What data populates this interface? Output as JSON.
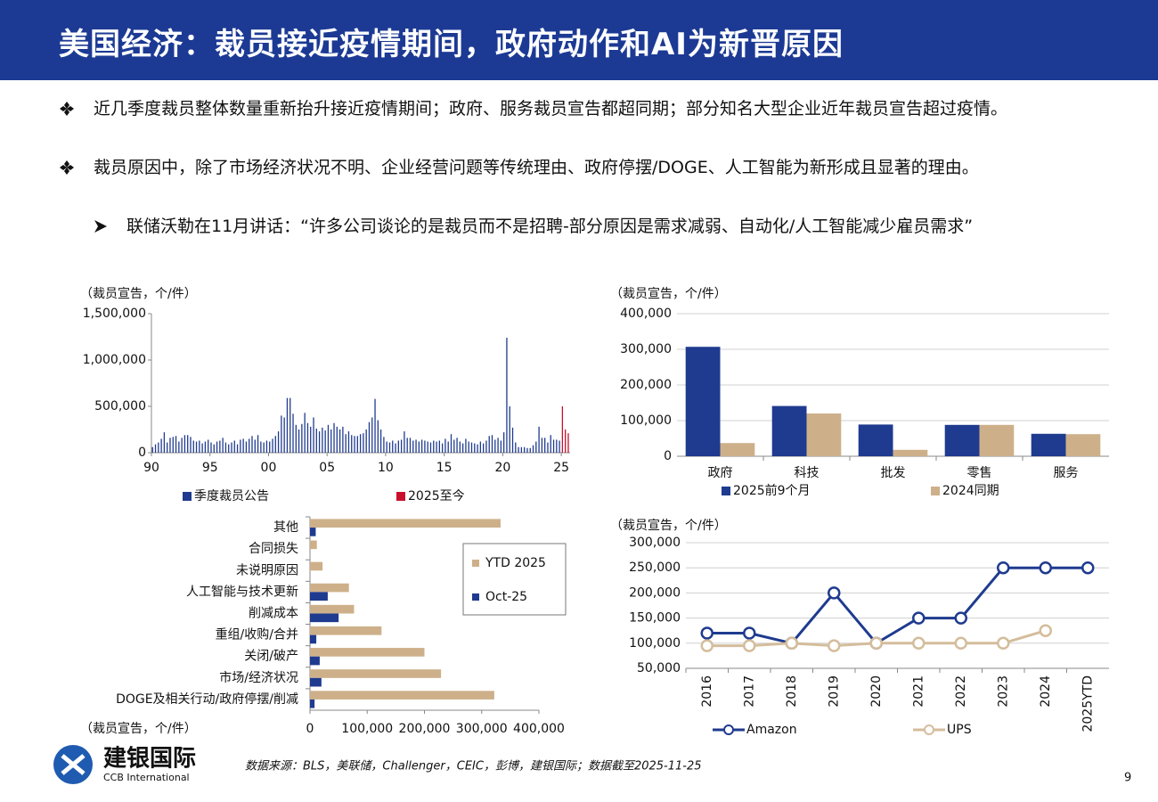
{
  "header": {
    "title": "美国经济：裁员接近疫情期间，政府动作和AI为新晋原因"
  },
  "bullets": [
    "近几季度裁员整体数量重新抬升接近疫情期间；政府、服务裁员宣告都超同期；部分知名大型企业近年裁员宣告超过疫情。",
    "裁员原因中，除了市场经济状况不明、企业经营问题等传统理由、政府停摆/DOGE、人工智能为新形成且显著的理由。"
  ],
  "sub_bullet": "联储沃勒在11月讲话：“许多公司谈论的是裁员而不是招聘-部分原因是需求减弱、自动化/人工智能减少雇员需求”",
  "chart_data": [
    {
      "type": "bar",
      "y_label": "（裁员宣告，个/件）",
      "xlim": [
        1990,
        2025.75
      ],
      "xticks": [
        {
          "value": 1990,
          "label": "90"
        },
        {
          "value": 1995,
          "label": "95"
        },
        {
          "value": 2000,
          "label": "00"
        },
        {
          "value": 2005,
          "label": "05"
        },
        {
          "value": 2010,
          "label": "10"
        },
        {
          "value": 2015,
          "label": "15"
        },
        {
          "value": 2020,
          "label": "20"
        },
        {
          "value": 2025,
          "label": "25"
        }
      ],
      "ylim": [
        0,
        1500000
      ],
      "yticks": [
        0,
        {
          "value": 500000,
          "label": "500,000"
        },
        {
          "value": 1000000,
          "label": "1,000,000"
        },
        {
          "value": 1500000,
          "label": "1,500,000"
        }
      ],
      "grid": false,
      "series": [
        {
          "name": "季度裁员公告",
          "color": "#1f3b8f",
          "x": [
            1990,
            1990.25,
            1990.5,
            1990.75,
            1991,
            1991.25,
            1991.5,
            1991.75,
            1992,
            1992.25,
            1992.5,
            1992.75,
            1993,
            1993.25,
            1993.5,
            1993.75,
            1994,
            1994.25,
            1994.5,
            1994.75,
            1995,
            1995.25,
            1995.5,
            1995.75,
            1996,
            1996.25,
            1996.5,
            1996.75,
            1997,
            1997.25,
            1997.5,
            1997.75,
            1998,
            1998.25,
            1998.5,
            1998.75,
            1999,
            1999.25,
            1999.5,
            1999.75,
            2000,
            2000.25,
            2000.5,
            2000.75,
            2001,
            2001.25,
            2001.5,
            2001.75,
            2002,
            2002.25,
            2002.5,
            2002.75,
            2003,
            2003.25,
            2003.5,
            2003.75,
            2004,
            2004.25,
            2004.5,
            2004.75,
            2005,
            2005.25,
            2005.5,
            2005.75,
            2006,
            2006.25,
            2006.5,
            2006.75,
            2007,
            2007.25,
            2007.5,
            2007.75,
            2008,
            2008.25,
            2008.5,
            2008.75,
            2009,
            2009.25,
            2009.5,
            2009.75,
            2010,
            2010.25,
            2010.5,
            2010.75,
            2011,
            2011.25,
            2011.5,
            2011.75,
            2012,
            2012.25,
            2012.5,
            2012.75,
            2013,
            2013.25,
            2013.5,
            2013.75,
            2014,
            2014.25,
            2014.5,
            2014.75,
            2015,
            2015.25,
            2015.5,
            2015.75,
            2016,
            2016.25,
            2016.5,
            2016.75,
            2017,
            2017.25,
            2017.5,
            2017.75,
            2018,
            2018.25,
            2018.5,
            2018.75,
            2019,
            2019.25,
            2019.5,
            2019.75,
            2020,
            2020.25,
            2020.5,
            2020.75,
            2021,
            2021.25,
            2021.5,
            2021.75,
            2022,
            2022.25,
            2022.5,
            2022.75,
            2023,
            2023.25,
            2023.5,
            2023.75,
            2024,
            2024.25,
            2024.5,
            2024.75
          ],
          "values": [
            60000,
            90000,
            110000,
            150000,
            220000,
            110000,
            160000,
            170000,
            180000,
            120000,
            160000,
            190000,
            190000,
            170000,
            130000,
            120000,
            130000,
            100000,
            120000,
            140000,
            110000,
            90000,
            120000,
            130000,
            160000,
            110000,
            90000,
            110000,
            130000,
            90000,
            140000,
            150000,
            120000,
            150000,
            180000,
            140000,
            190000,
            120000,
            110000,
            130000,
            120000,
            150000,
            180000,
            230000,
            400000,
            380000,
            590000,
            590000,
            420000,
            300000,
            250000,
            310000,
            430000,
            320000,
            280000,
            380000,
            260000,
            230000,
            270000,
            240000,
            300000,
            250000,
            320000,
            280000,
            250000,
            280000,
            200000,
            230000,
            190000,
            180000,
            180000,
            200000,
            210000,
            250000,
            330000,
            380000,
            580000,
            350000,
            250000,
            170000,
            120000,
            110000,
            130000,
            100000,
            130000,
            140000,
            230000,
            160000,
            160000,
            130000,
            140000,
            120000,
            140000,
            130000,
            120000,
            110000,
            130000,
            120000,
            130000,
            100000,
            150000,
            120000,
            200000,
            140000,
            160000,
            120000,
            100000,
            150000,
            120000,
            110000,
            100000,
            90000,
            120000,
            100000,
            130000,
            180000,
            190000,
            140000,
            160000,
            130000,
            220000,
            1240000,
            500000,
            270000,
            110000,
            60000,
            60000,
            60000,
            50000,
            50000,
            80000,
            120000,
            280000,
            160000,
            160000,
            110000,
            190000,
            140000,
            140000,
            130000
          ]
        },
        {
          "name": "2025至今",
          "color": "#c8102e",
          "x": [
            2025,
            2025.25,
            2025.5
          ],
          "values": [
            500000,
            250000,
            210000
          ]
        }
      ]
    },
    {
      "type": "bar",
      "y_label": "（裁员宣告，个/件）",
      "categories": [
        "政府",
        "科技",
        "批发",
        "零售",
        "服务"
      ],
      "ylim": [
        0,
        400000
      ],
      "yticks": [
        0,
        {
          "value": 100000,
          "label": "100,000"
        },
        {
          "value": 200000,
          "label": "200,000"
        },
        {
          "value": 300000,
          "label": "300,000"
        },
        {
          "value": 400000,
          "label": "400,000"
        }
      ],
      "grid": true,
      "series": [
        {
          "name": "2025前9个月",
          "color": "#1f3b8f",
          "values": [
            307000,
            141000,
            89000,
            88000,
            63000
          ]
        },
        {
          "name": "2024同期",
          "color": "#cdb08a",
          "values": [
            37000,
            120000,
            18000,
            88000,
            62000
          ]
        }
      ]
    },
    {
      "type": "barh",
      "x_label": "（裁员宣告，个/件）",
      "categories": [
        "其他",
        "合同损失",
        "未说明原因",
        "人工智能与技术更新",
        "削减成本",
        "重组/收购/合并",
        "关闭/破产",
        "市场/经济状况",
        "DOGE及相关行动/政府停摆/削减"
      ],
      "xlim": [
        0,
        400000
      ],
      "xticks": [
        0,
        {
          "value": 100000,
          "label": "100,000"
        },
        {
          "value": 200000,
          "label": "200,000"
        },
        {
          "value": 300000,
          "label": "300,000"
        },
        {
          "value": 400000,
          "label": "400,000"
        }
      ],
      "series": [
        {
          "name": "YTD 2025",
          "color": "#cdb08a",
          "values": [
            333000,
            12000,
            22000,
            68000,
            77000,
            125000,
            200000,
            229000,
            322000
          ]
        },
        {
          "name": "Oct-25",
          "color": "#1f3b8f",
          "values": [
            10000,
            0,
            0,
            31000,
            50000,
            11000,
            17000,
            20000,
            8000
          ]
        }
      ]
    },
    {
      "type": "line",
      "y_label": "（裁员宣告，个/件）",
      "categories": [
        "2016",
        "2017",
        "2018",
        "2019",
        "2020",
        "2021",
        "2022",
        "2023",
        "2024",
        "2025YTD"
      ],
      "ylim": [
        50000,
        300000
      ],
      "yticks": [
        {
          "value": 50000,
          "label": "50,000"
        },
        {
          "value": 100000,
          "label": "100,000"
        },
        {
          "value": 150000,
          "label": "150,000"
        },
        {
          "value": 200000,
          "label": "200,000"
        },
        {
          "value": 250000,
          "label": "250,000"
        },
        {
          "value": 300000,
          "label": "300,000"
        }
      ],
      "grid": true,
      "series": [
        {
          "name": "Amazon",
          "color": "#1f3b8f",
          "values": [
            120000,
            120000,
            100000,
            200000,
            100000,
            150000,
            150000,
            250000,
            250000,
            250000
          ]
        },
        {
          "name": "UPS",
          "color": "#d4bd9c",
          "values": [
            95000,
            95000,
            100000,
            95000,
            100000,
            100000,
            100000,
            100000,
            125000,
            null
          ]
        }
      ]
    }
  ],
  "footer": {
    "logo_cn": "建银国际",
    "logo_en": "CCB International",
    "source": "数据来源：BLS，美联储，Challenger，CEIC，彭博，建银国际；数据截至2025-11-25",
    "page": "9"
  }
}
